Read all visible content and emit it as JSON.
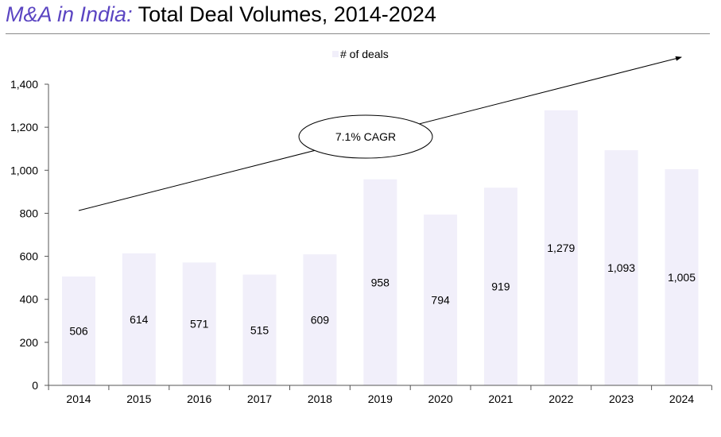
{
  "title": {
    "accent": "M&A in India:",
    "main": "Total Deal Volumes, 2014",
    "range_end": "2024"
  },
  "colors": {
    "accent": "#5b45c2",
    "bar": "#f1effa",
    "axis": "#555555",
    "text": "#000000"
  },
  "chart_data": {
    "type": "bar",
    "title": "Total Deal Volumes, 2014-2024",
    "categories": [
      "2014",
      "2015",
      "2016",
      "2017",
      "2018",
      "2019",
      "2020",
      "2021",
      "2022",
      "2023",
      "2024"
    ],
    "series": [
      {
        "name": "# of deals",
        "values": [
          506,
          614,
          571,
          515,
          609,
          958,
          794,
          919,
          1279,
          1093,
          1005
        ]
      }
    ],
    "value_labels": [
      "506",
      "614",
      "571",
      "515",
      "609",
      "958",
      "794",
      "919",
      "1,279",
      "1,093",
      "1,005"
    ],
    "ylim": [
      0,
      1400
    ],
    "yticks": [
      0,
      200,
      400,
      600,
      800,
      1000,
      1200,
      1400
    ],
    "ytick_labels": [
      "0",
      "200",
      "400",
      "600",
      "800",
      "1,000",
      "1,200",
      "1,400"
    ],
    "xlabel": "",
    "ylabel": "",
    "legend": {
      "label": "# of deals",
      "position": "top-center"
    },
    "grid": false,
    "annotation": {
      "text": "7.1% CAGR",
      "from": "2014",
      "to": "2024"
    }
  }
}
